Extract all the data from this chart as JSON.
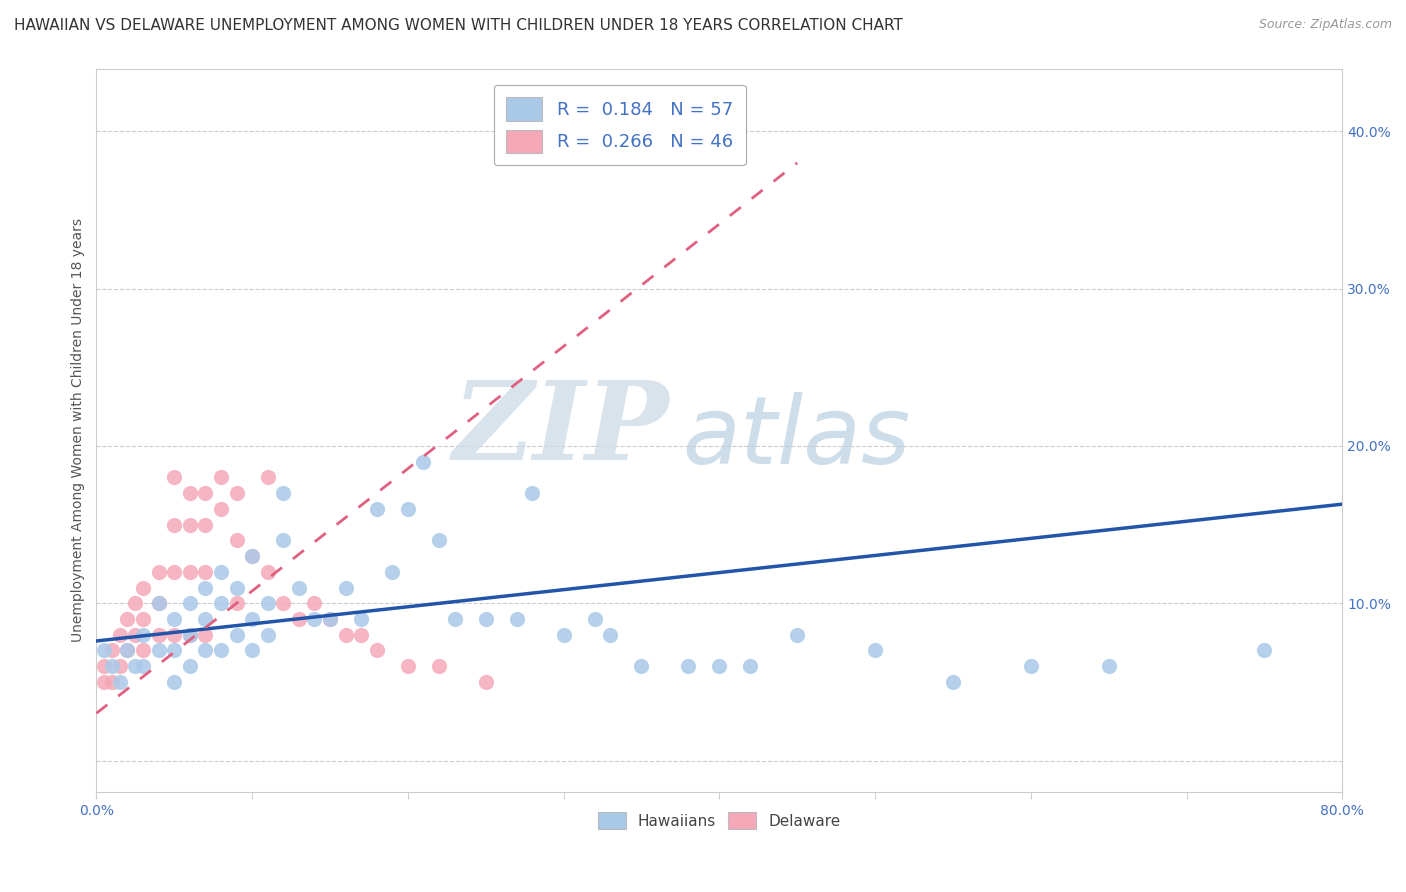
{
  "title": "HAWAIIAN VS DELAWARE UNEMPLOYMENT AMONG WOMEN WITH CHILDREN UNDER 18 YEARS CORRELATION CHART",
  "source": "Source: ZipAtlas.com",
  "ylabel": "Unemployment Among Women with Children Under 18 years",
  "xmin": 0.0,
  "xmax": 0.8,
  "ymin": -0.02,
  "ymax": 0.44,
  "legend_r1": "R =  0.184   N = 57",
  "legend_r2": "R =  0.266   N = 46",
  "hawaii_color": "#aac8e8",
  "delaware_color": "#f4a8b8",
  "hawaii_line_color": "#2255aa",
  "delaware_line_color": "#e06080",
  "watermark_zip": "ZIP",
  "watermark_atlas": "atlas",
  "hawaii_scatter_x": [
    0.005,
    0.01,
    0.015,
    0.02,
    0.025,
    0.03,
    0.03,
    0.04,
    0.04,
    0.05,
    0.05,
    0.05,
    0.06,
    0.06,
    0.06,
    0.07,
    0.07,
    0.07,
    0.08,
    0.08,
    0.08,
    0.09,
    0.09,
    0.1,
    0.1,
    0.1,
    0.11,
    0.11,
    0.12,
    0.12,
    0.13,
    0.14,
    0.15,
    0.16,
    0.17,
    0.18,
    0.19,
    0.2,
    0.21,
    0.22,
    0.23,
    0.25,
    0.27,
    0.28,
    0.3,
    0.32,
    0.33,
    0.35,
    0.38,
    0.4,
    0.42,
    0.45,
    0.5,
    0.55,
    0.6,
    0.65,
    0.75
  ],
  "hawaii_scatter_y": [
    0.07,
    0.06,
    0.05,
    0.07,
    0.06,
    0.08,
    0.06,
    0.1,
    0.07,
    0.09,
    0.07,
    0.05,
    0.1,
    0.08,
    0.06,
    0.11,
    0.09,
    0.07,
    0.12,
    0.1,
    0.07,
    0.11,
    0.08,
    0.13,
    0.09,
    0.07,
    0.1,
    0.08,
    0.17,
    0.14,
    0.11,
    0.09,
    0.09,
    0.11,
    0.09,
    0.16,
    0.12,
    0.16,
    0.19,
    0.14,
    0.09,
    0.09,
    0.09,
    0.17,
    0.08,
    0.09,
    0.08,
    0.06,
    0.06,
    0.06,
    0.06,
    0.08,
    0.07,
    0.05,
    0.06,
    0.06,
    0.07
  ],
  "delaware_scatter_x": [
    0.005,
    0.005,
    0.01,
    0.01,
    0.015,
    0.015,
    0.02,
    0.02,
    0.025,
    0.025,
    0.03,
    0.03,
    0.03,
    0.04,
    0.04,
    0.04,
    0.05,
    0.05,
    0.05,
    0.05,
    0.06,
    0.06,
    0.06,
    0.06,
    0.07,
    0.07,
    0.07,
    0.07,
    0.08,
    0.08,
    0.09,
    0.09,
    0.09,
    0.1,
    0.11,
    0.11,
    0.12,
    0.13,
    0.14,
    0.15,
    0.16,
    0.17,
    0.18,
    0.2,
    0.22,
    0.25
  ],
  "delaware_scatter_y": [
    0.06,
    0.05,
    0.07,
    0.05,
    0.08,
    0.06,
    0.09,
    0.07,
    0.1,
    0.08,
    0.11,
    0.09,
    0.07,
    0.12,
    0.1,
    0.08,
    0.18,
    0.15,
    0.12,
    0.08,
    0.17,
    0.15,
    0.12,
    0.08,
    0.17,
    0.15,
    0.12,
    0.08,
    0.18,
    0.16,
    0.17,
    0.14,
    0.1,
    0.13,
    0.18,
    0.12,
    0.1,
    0.09,
    0.1,
    0.09,
    0.08,
    0.08,
    0.07,
    0.06,
    0.06,
    0.05
  ],
  "hawaii_line_x0": 0.0,
  "hawaii_line_x1": 0.8,
  "hawaii_line_y0": 0.076,
  "hawaii_line_y1": 0.163,
  "delaware_line_x0": 0.0,
  "delaware_line_x1": 0.45,
  "delaware_line_y0": 0.03,
  "delaware_line_y1": 0.38,
  "title_fontsize": 11,
  "axis_label_fontsize": 10,
  "tick_fontsize": 10
}
